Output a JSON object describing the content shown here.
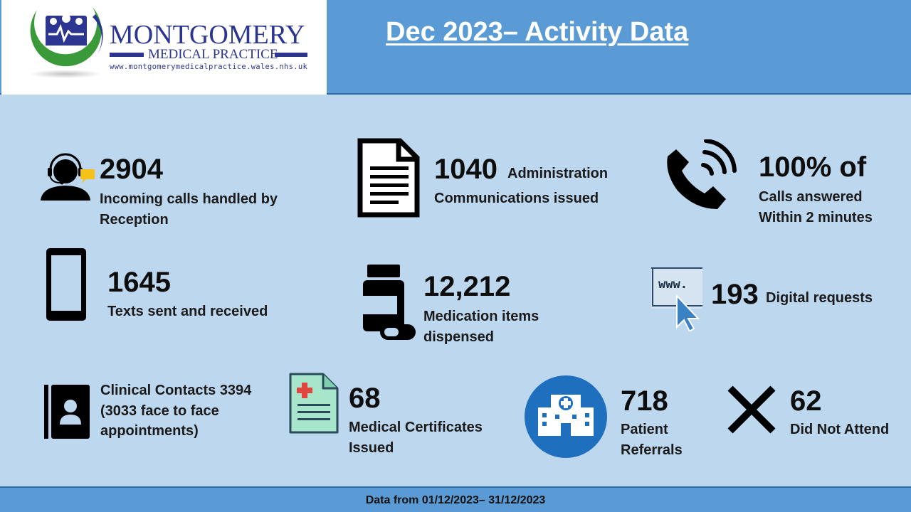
{
  "header": {
    "logo": {
      "name": "MONTGOMERY",
      "subtitle": "MEDICAL PRACTICE",
      "url": "www.montgomerymedicalpractice.wales.nhs.uk"
    },
    "title": "Dec 2023– Activity Data"
  },
  "stats": {
    "calls": {
      "value": "2904",
      "label_line1": "Incoming calls handled by",
      "label_line2": "Reception"
    },
    "admin": {
      "value": "1040",
      "label_inline": "Administration",
      "label_line2": "Communications issued"
    },
    "answered": {
      "value": "100% of",
      "label_line1": "Calls answered",
      "label_line2": "Within 2 minutes"
    },
    "texts": {
      "value": "1645",
      "label_line1": "Texts sent and received"
    },
    "medication": {
      "value": "12,212",
      "label_line1": "Medication items",
      "label_line2": "dispensed"
    },
    "digital": {
      "value": "193",
      "label_inline": "Digital requests",
      "icon_text": "www."
    },
    "clinical": {
      "line1": "Clinical Contacts 3394",
      "line2": "(3033 face to face",
      "line3": "appointments)"
    },
    "certificates": {
      "value": "68",
      "label_line1": "Medical Certificates",
      "label_line2": "Issued"
    },
    "referrals": {
      "value": "718",
      "label_line1": "Patient",
      "label_line2": "Referrals"
    },
    "dna": {
      "value": "62",
      "label_line1": "Did Not Attend"
    }
  },
  "footer": {
    "text": "Data from 01/12/2023– 31/12/2023"
  },
  "colors": {
    "background": "#bdd7ee",
    "header": "#5b9bd5",
    "logo_blue": "#2c3590",
    "logo_green": "#3a9a3a",
    "hospital_blue": "#1f6fbf"
  },
  "icons": [
    "headset-agent-icon",
    "document-icon",
    "phone-ringing-icon",
    "mobile-phone-icon",
    "pill-bottle-icon",
    "web-cursor-icon",
    "contact-book-icon",
    "medical-certificate-icon",
    "hospital-icon",
    "cross-x-icon",
    "practice-logo-icon"
  ]
}
